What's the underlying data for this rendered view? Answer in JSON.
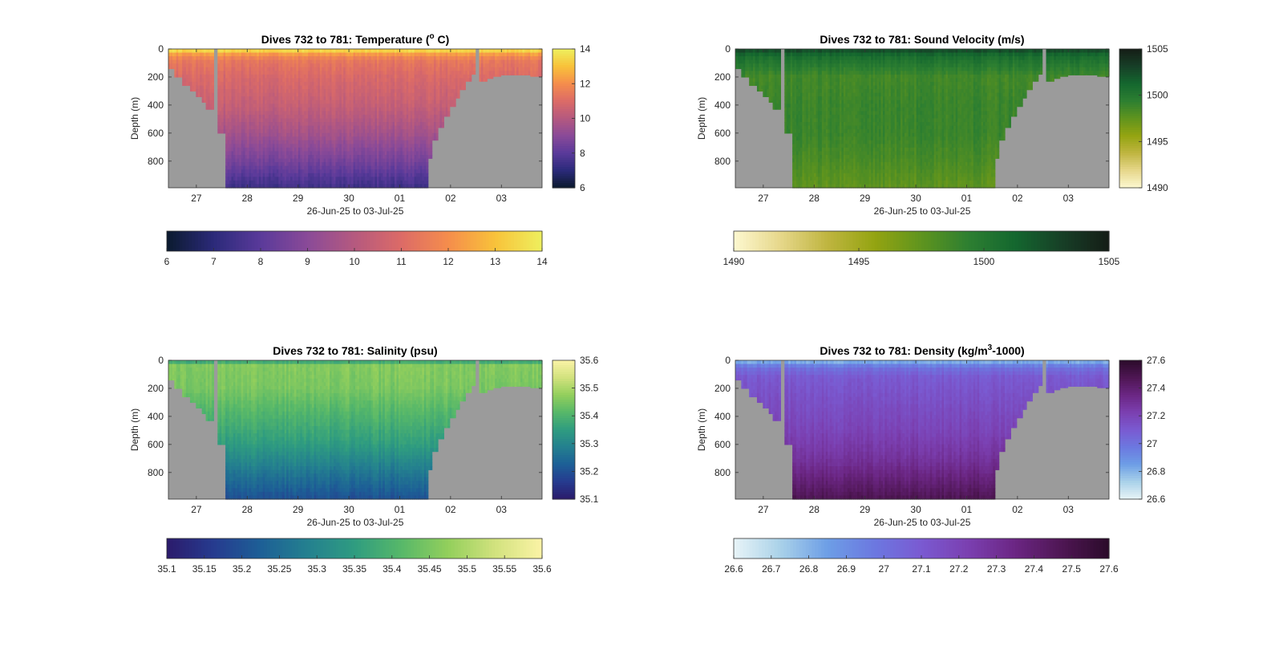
{
  "figure": {
    "xlabel": "26-Jun-25 to 03-Jul-25",
    "ylabel": "Depth (m)",
    "x_tick_labels": [
      "27",
      "28",
      "29",
      "30",
      "01",
      "02",
      "03"
    ],
    "y_tick_labels": [
      "0",
      "200",
      "400",
      "600",
      "800"
    ]
  },
  "chart_data": [
    {
      "type": "heatmap",
      "id": "temperature",
      "title_main": "Dives 732 to 781: Temperature (",
      "title_sup": "o",
      "title_end": " C)",
      "xlabel": "26-Jun-25 to 03-Jul-25",
      "ylabel": "Depth (m)",
      "x_range_days": [
        26.45,
        33.8
      ],
      "x_ticks": [
        27,
        28,
        29,
        30,
        31,
        32,
        33
      ],
      "y_range": [
        0,
        990
      ],
      "y_ticks": [
        0,
        200,
        400,
        600,
        800
      ],
      "y_reversed": true,
      "colorbar_range": [
        6,
        14
      ],
      "colorbar_ticks": [
        "6",
        "8",
        "10",
        "12",
        "14"
      ],
      "horizontal_colorbar_range": [
        6,
        14
      ],
      "horizontal_colorbar_ticks": [
        "6",
        "7",
        "8",
        "9",
        "10",
        "11",
        "12",
        "13",
        "14"
      ],
      "colormap": [
        "#0b1a2e",
        "#2b2a7a",
        "#5a3a9a",
        "#8a4a98",
        "#b5597f",
        "#dc6b67",
        "#f58d4c",
        "#f8c23a",
        "#eef05e"
      ],
      "profile": [
        [
          0,
          13.8
        ],
        [
          15,
          13.3
        ],
        [
          40,
          12.2
        ],
        [
          80,
          11.4
        ],
        [
          200,
          10.9
        ],
        [
          400,
          10.4
        ],
        [
          600,
          9.6
        ],
        [
          800,
          8.6
        ],
        [
          990,
          7.4
        ]
      ],
      "value_range": [
        6,
        14
      ]
    },
    {
      "type": "heatmap",
      "id": "sound_velocity",
      "title_main": "Dives 732 to 781: Sound Velocity (m/s)",
      "title_sup": "",
      "title_end": "",
      "xlabel": "26-Jun-25 to 03-Jul-25",
      "ylabel": "Depth (m)",
      "x_range_days": [
        26.45,
        33.8
      ],
      "x_ticks": [
        27,
        28,
        29,
        30,
        31,
        32,
        33
      ],
      "y_range": [
        0,
        990
      ],
      "y_ticks": [
        0,
        200,
        400,
        600,
        800
      ],
      "y_reversed": true,
      "colorbar_range": [
        1490,
        1505
      ],
      "colorbar_ticks": [
        "1490",
        "1495",
        "1500",
        "1505"
      ],
      "horizontal_colorbar_range": [
        1490,
        1505
      ],
      "horizontal_colorbar_ticks": [
        "1490",
        "1495",
        "1500",
        "1505"
      ],
      "colormap": [
        "#fdf8d0",
        "#e6d78a",
        "#bfb540",
        "#94a411",
        "#5f941e",
        "#2d7f31",
        "#14672f",
        "#173f27",
        "#151d16"
      ],
      "profile": [
        [
          0,
          1503.5
        ],
        [
          20,
          1501.8
        ],
        [
          60,
          1500.6
        ],
        [
          200,
          1498.6
        ],
        [
          400,
          1498.9
        ],
        [
          600,
          1498.9
        ],
        [
          800,
          1498.3
        ],
        [
          990,
          1497.5
        ]
      ],
      "value_range": [
        1490,
        1505
      ]
    },
    {
      "type": "heatmap",
      "id": "salinity",
      "title_main": "Dives 732 to 781: Salinity (psu)",
      "title_sup": "",
      "title_end": "",
      "xlabel": "26-Jun-25 to 03-Jul-25",
      "ylabel": "Depth (m)",
      "x_range_days": [
        26.45,
        33.8
      ],
      "x_ticks": [
        27,
        28,
        29,
        30,
        31,
        32,
        33
      ],
      "y_range": [
        0,
        990
      ],
      "y_ticks": [
        0,
        200,
        400,
        600,
        800
      ],
      "y_reversed": true,
      "colorbar_range": [
        35.1,
        35.6
      ],
      "colorbar_ticks": [
        "35.1",
        "35.2",
        "35.3",
        "35.4",
        "35.5",
        "35.6"
      ],
      "horizontal_colorbar_range": [
        35.1,
        35.6
      ],
      "horizontal_colorbar_ticks": [
        "35.1",
        "35.15",
        "35.2",
        "35.25",
        "35.3",
        "35.35",
        "35.4",
        "35.45",
        "35.5",
        "35.55",
        "35.6"
      ],
      "colormap": [
        "#2b1b6b",
        "#263b8f",
        "#1d5f96",
        "#24808f",
        "#2f9c80",
        "#57b869",
        "#93cf5c",
        "#d2e27e",
        "#fbf3a6"
      ],
      "profile": [
        [
          0,
          35.33
        ],
        [
          30,
          35.46
        ],
        [
          200,
          35.45
        ],
        [
          400,
          35.4
        ],
        [
          600,
          35.35
        ],
        [
          800,
          35.27
        ],
        [
          990,
          35.2
        ]
      ],
      "value_range": [
        35.1,
        35.6
      ]
    },
    {
      "type": "heatmap",
      "id": "density",
      "title_main": "Dives 732 to 781: Density (kg/m",
      "title_sup": "3",
      "title_end": "-1000)",
      "xlabel": "26-Jun-25 to 03-Jul-25",
      "ylabel": "Depth (m)",
      "x_range_days": [
        26.45,
        33.8
      ],
      "x_ticks": [
        27,
        28,
        29,
        30,
        31,
        32,
        33
      ],
      "y_range": [
        0,
        990
      ],
      "y_ticks": [
        0,
        200,
        400,
        600,
        800
      ],
      "y_reversed": true,
      "colorbar_range": [
        26.6,
        27.6
      ],
      "colorbar_ticks": [
        "26.6",
        "26.8",
        "27",
        "27.2",
        "27.4",
        "27.6"
      ],
      "horizontal_colorbar_range": [
        26.6,
        27.6
      ],
      "horizontal_colorbar_ticks": [
        "26.6",
        "26.7",
        "26.8",
        "26.9",
        "27",
        "27.1",
        "27.2",
        "27.3",
        "27.4",
        "27.5",
        "27.6"
      ],
      "colormap": [
        "#e8f4f7",
        "#a9d1e9",
        "#6d9ee6",
        "#6c78e0",
        "#7a5ad1",
        "#7b3fb0",
        "#6b2683",
        "#4e1653",
        "#2b0b2a"
      ],
      "profile": [
        [
          0,
          26.65
        ],
        [
          15,
          26.85
        ],
        [
          50,
          27.0
        ],
        [
          120,
          27.1
        ],
        [
          300,
          27.15
        ],
        [
          500,
          27.2
        ],
        [
          700,
          27.28
        ],
        [
          850,
          27.38
        ],
        [
          990,
          27.48
        ]
      ],
      "value_range": [
        26.6,
        27.6
      ]
    }
  ]
}
